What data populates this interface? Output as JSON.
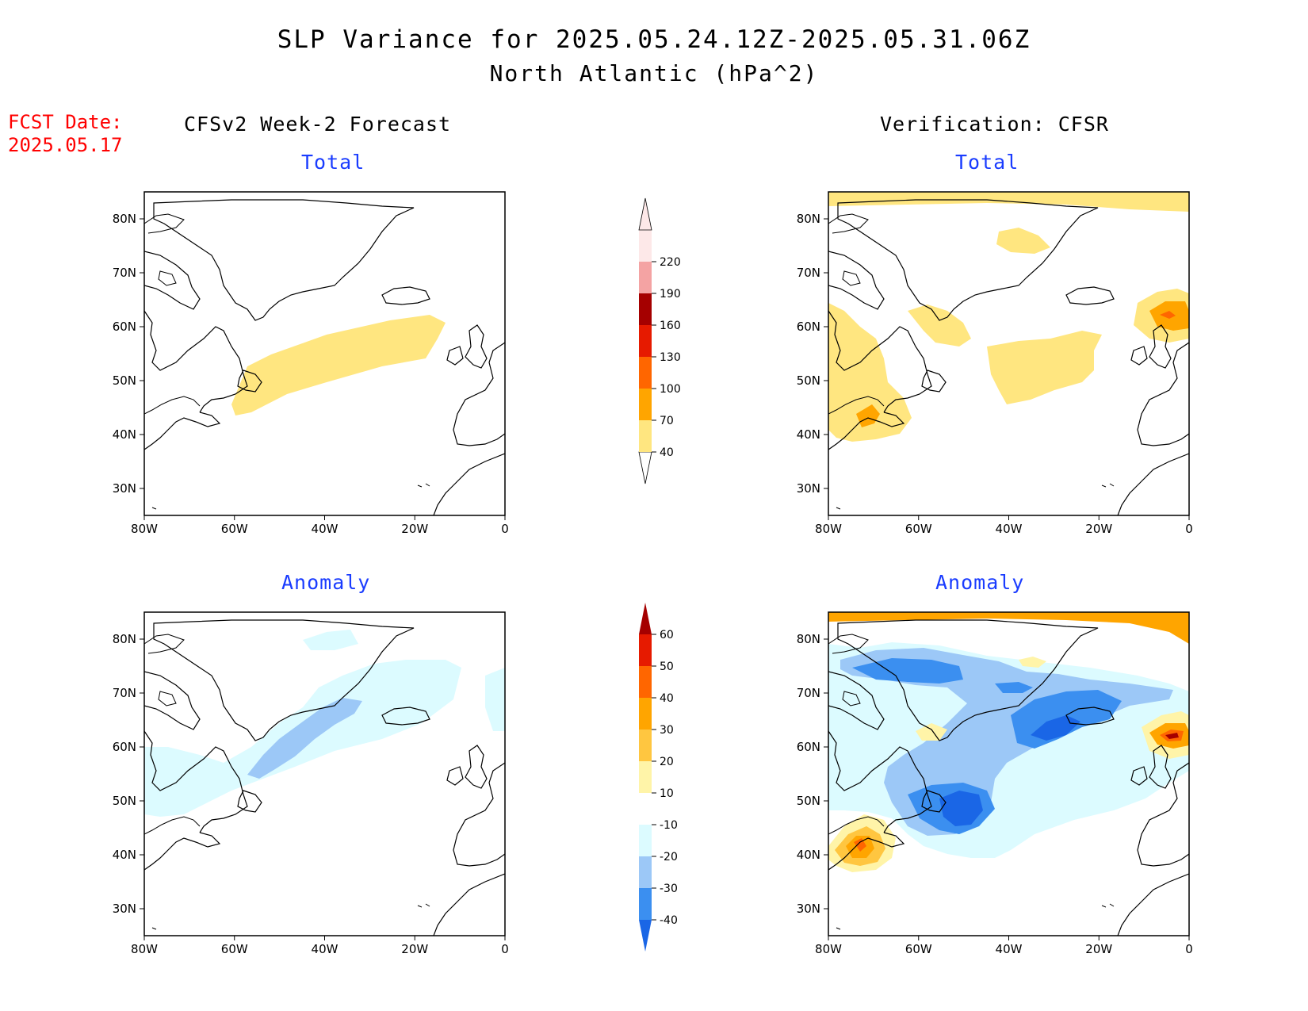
{
  "title": {
    "line1": "SLP Variance for 2025.05.24.12Z-2025.05.31.06Z",
    "line2": "North Atlantic (hPa^2)"
  },
  "forecast_date": {
    "label": "FCST Date:",
    "value": "2025.05.17"
  },
  "columns": {
    "left": "CFSv2 Week-2 Forecast",
    "right": "Verification: CFSR"
  },
  "panels": [
    {
      "id": "fcst-total",
      "subtitle": "Total"
    },
    {
      "id": "verif-total",
      "subtitle": "Total"
    },
    {
      "id": "fcst-anomaly",
      "subtitle": "Anomaly"
    },
    {
      "id": "verif-anomaly",
      "subtitle": "Anomaly"
    }
  ],
  "axes": {
    "lat_labels": [
      "30N",
      "40N",
      "50N",
      "60N",
      "70N",
      "80N"
    ],
    "lat_values": [
      30,
      40,
      50,
      60,
      70,
      80
    ],
    "lon_labels": [
      "80W",
      "60W",
      "40W",
      "20W",
      "0"
    ],
    "lon_values": [
      -80,
      -60,
      -40,
      -20,
      0
    ],
    "lat_range": [
      25,
      85
    ],
    "lon_range": [
      -80,
      0
    ]
  },
  "colorbars": {
    "total": {
      "labels": [
        "40",
        "70",
        "100",
        "130",
        "160",
        "190",
        "220"
      ],
      "colors": [
        "#ffe680",
        "#ffa500",
        "#ff6600",
        "#e61a00",
        "#a50000",
        "#f4a3a3",
        "#fde8e8"
      ]
    },
    "anomaly": {
      "labels": [
        "-40",
        "-30",
        "-20",
        "-10",
        "10",
        "20",
        "30",
        "40",
        "50",
        "60"
      ],
      "colors": [
        "#1a66e6",
        "#3b8ff0",
        "#9cc8f7",
        "#dcfbff",
        "#ffffff",
        "#fff4a8",
        "#ffc640",
        "#ffa500",
        "#ff6600",
        "#e61a00",
        "#a50000"
      ]
    }
  },
  "colors": {
    "title_text": "#000000",
    "fcst_date_text": "#ff0000",
    "subtitle_text": "#1a3cff"
  }
}
